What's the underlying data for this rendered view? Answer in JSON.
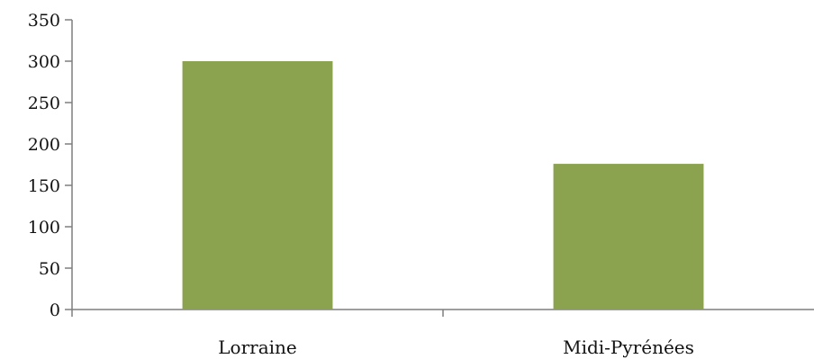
{
  "chart_data": {
    "type": "bar",
    "categories": [
      "Lorraine",
      "Midi-Pyrénées"
    ],
    "values": [
      300,
      176
    ],
    "ylim": [
      0,
      350
    ],
    "yticks": [
      0,
      50,
      100,
      150,
      200,
      250,
      300,
      350
    ],
    "grid": false,
    "legend": "none",
    "bar_color": "#8ba34e",
    "axis_color": "#7f7f7f"
  }
}
